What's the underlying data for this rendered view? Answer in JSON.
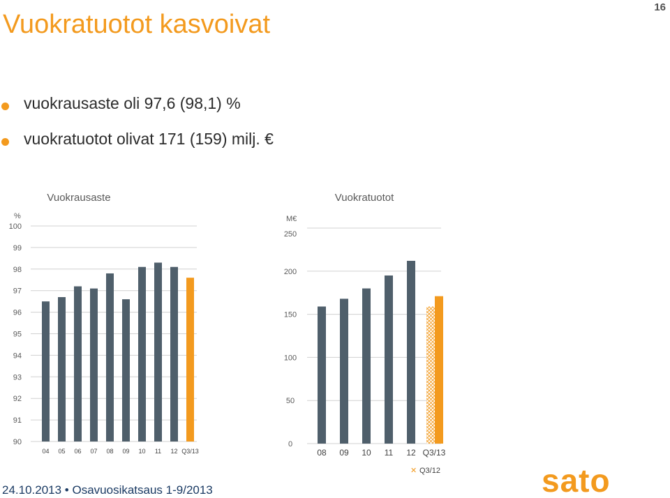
{
  "slide": {
    "title": "Vuokratuotot kasvoivat",
    "page_number": "16",
    "footer": "24.10.2013 • Osavuosikatsaus 1-9/2013",
    "logo_text": "sato",
    "accent_color": "#f39a1e",
    "bar_color": "#4f5f6b"
  },
  "bullets": [
    "vuokrausaste oli 97,6 (98,1) %",
    "vuokratuotot olivat 171 (159) milj. €"
  ],
  "chart_data": [
    {
      "type": "bar",
      "title": "Vuokrausaste",
      "unit": "%",
      "ylim": [
        90,
        100
      ],
      "yticks": [
        "100",
        "99",
        "98",
        "97",
        "96",
        "95",
        "94",
        "93",
        "92",
        "91",
        "90"
      ],
      "categories": [
        "04",
        "05",
        "06",
        "07",
        "08",
        "09",
        "10",
        "11",
        "12",
        "Q3/13"
      ],
      "values": [
        96.5,
        96.7,
        97.2,
        97.1,
        97.8,
        96.6,
        98.1,
        98.3,
        98.1,
        97.6
      ],
      "highlight": "Q3/13",
      "grid": true
    },
    {
      "type": "bar",
      "title": "Vuokratuotot",
      "unit": "M€",
      "ylim": [
        0,
        250
      ],
      "yticks": [
        "250",
        "200",
        "150",
        "100",
        "50",
        "0"
      ],
      "categories": [
        "08",
        "09",
        "10",
        "11",
        "12",
        "Q3/13"
      ],
      "values": [
        159,
        168,
        180,
        195,
        212,
        171
      ],
      "comparison": {
        "label": "Q3/12",
        "value": 159
      },
      "highlight": "Q3/13",
      "grid": true
    }
  ]
}
